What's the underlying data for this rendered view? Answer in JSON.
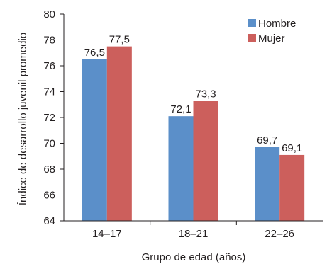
{
  "chart_data": {
    "type": "bar",
    "categories": [
      "14–17",
      "18–21",
      "22–26"
    ],
    "series": [
      {
        "name": "Hombre",
        "values": [
          76.5,
          72.1,
          69.7
        ],
        "labels": [
          "76,5",
          "72,1",
          "69,7"
        ],
        "color": "#5b8fc9"
      },
      {
        "name": "Mujer",
        "values": [
          77.5,
          73.3,
          69.1
        ],
        "labels": [
          "77,5",
          "73,3",
          "69,1"
        ],
        "color": "#cc5f5c"
      }
    ],
    "xlabel": "Grupo de edad (años)",
    "ylabel": "Índice de desarrollo  juvenil promedio",
    "ylim": [
      64,
      80
    ],
    "yticks": [
      64,
      66,
      68,
      70,
      72,
      74,
      76,
      78,
      80
    ],
    "grid": false,
    "legend_position": "top-right"
  }
}
